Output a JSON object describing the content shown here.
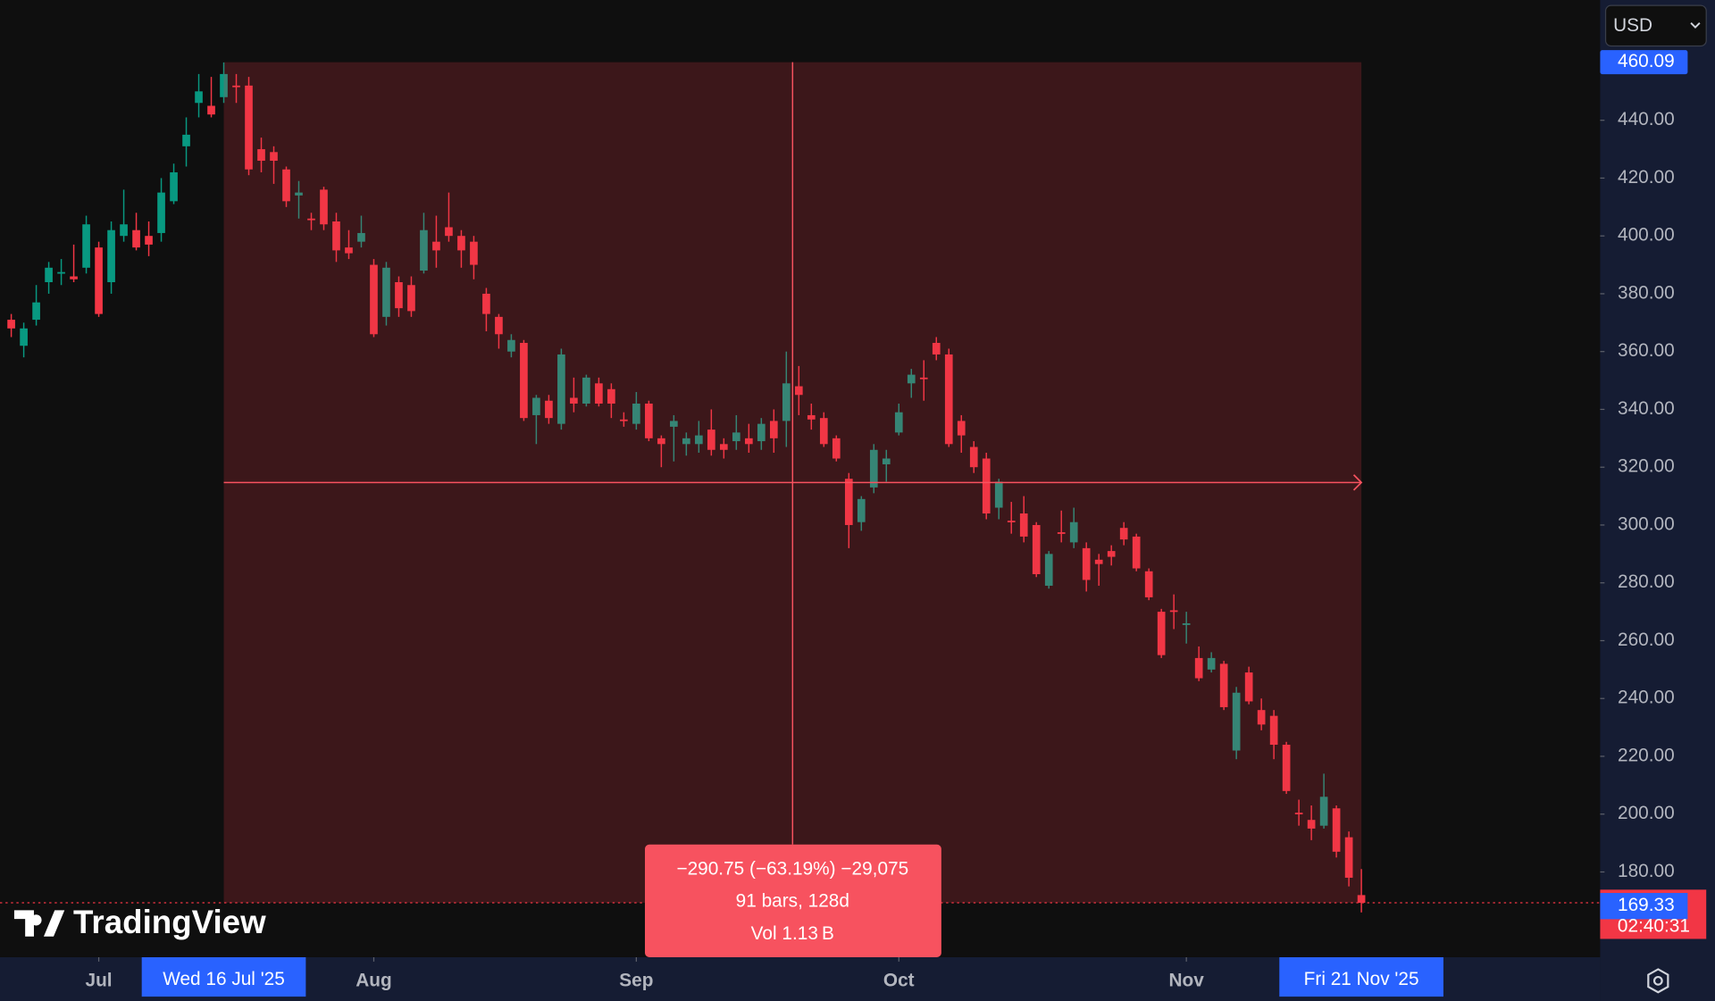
{
  "chart_data": {
    "type": "candlestick",
    "up_color": "#089981",
    "down_color": "#f23645",
    "xlim": [
      -0.9,
      127.1
    ],
    "ylim": [
      150.5,
      481.6
    ],
    "xticks": [
      {
        "value": 7,
        "label": "Jul"
      },
      {
        "value": 29,
        "label": "Aug"
      },
      {
        "value": 50,
        "label": "Sep"
      },
      {
        "value": 71,
        "label": "Oct"
      },
      {
        "value": 94,
        "label": "Nov"
      }
    ],
    "yticks": [
      {
        "value": 180,
        "label": "180.00"
      },
      {
        "value": 200,
        "label": "200.00"
      },
      {
        "value": 220,
        "label": "220.00"
      },
      {
        "value": 240,
        "label": "240.00"
      },
      {
        "value": 260,
        "label": "260.00"
      },
      {
        "value": 280,
        "label": "280.00"
      },
      {
        "value": 300,
        "label": "300.00"
      },
      {
        "value": 320,
        "label": "320.00"
      },
      {
        "value": 340,
        "label": "340.00"
      },
      {
        "value": 360,
        "label": "360.00"
      },
      {
        "value": 380,
        "label": "380.00"
      },
      {
        "value": 400,
        "label": "400.00"
      },
      {
        "value": 420,
        "label": "420.00"
      },
      {
        "value": 440,
        "label": "440.00"
      }
    ],
    "open": [
      371,
      362,
      371,
      384,
      387,
      386,
      389,
      396,
      384,
      400,
      402,
      400,
      401,
      412,
      431,
      446,
      445,
      448,
      452,
      452,
      430,
      429,
      423,
      414,
      406,
      416,
      405,
      396,
      398,
      390,
      372,
      384,
      383,
      388,
      398,
      403,
      400,
      398,
      380,
      372,
      360,
      363,
      338,
      343,
      335,
      344,
      342,
      349,
      347,
      336.5,
      335,
      342,
      330,
      334,
      328,
      328,
      333,
      328,
      329,
      330,
      329,
      336,
      336,
      348,
      338,
      337,
      330,
      316,
      301,
      313,
      321,
      332,
      349,
      351,
      363,
      359,
      336,
      327,
      323,
      306,
      301.5,
      304,
      300,
      279,
      297.5,
      294,
      292,
      288,
      291,
      299,
      296,
      284,
      270,
      270.5,
      265.5,
      254,
      250,
      252,
      222,
      249,
      236,
      234,
      224,
      200.5,
      198,
      196,
      202,
      192,
      172
    ],
    "high": [
      373,
      370,
      383,
      391,
      392,
      397,
      407,
      398,
      405,
      416,
      408,
      405,
      420,
      425,
      441,
      456,
      455,
      460,
      456,
      455,
      434,
      431,
      424,
      419,
      408,
      417,
      408,
      402,
      407,
      392,
      391,
      386,
      386,
      408,
      407,
      415,
      402,
      400,
      382,
      373,
      366,
      364,
      345,
      345,
      361,
      351,
      352,
      351,
      349,
      339,
      346,
      343,
      331,
      338,
      332,
      336,
      340,
      330,
      338,
      335,
      337,
      340,
      360,
      355,
      342,
      339,
      331,
      318,
      310,
      328,
      326,
      342,
      354,
      357,
      365,
      361,
      338,
      329,
      325,
      316,
      308,
      310,
      301,
      291,
      305,
      306,
      294,
      290,
      293,
      301,
      297,
      285,
      271,
      276,
      270,
      258,
      256,
      253,
      244,
      251,
      240,
      236,
      225,
      205,
      203,
      214,
      203,
      194,
      181
    ],
    "low": [
      365,
      358,
      369,
      380,
      383,
      384,
      387,
      372,
      380,
      398,
      395,
      393,
      398,
      411,
      424,
      441,
      441,
      446,
      446,
      421,
      422,
      418,
      410,
      406,
      402,
      402,
      391,
      392,
      396,
      365,
      369,
      372,
      372,
      387,
      389,
      398,
      389,
      385,
      367,
      361,
      358,
      336,
      328,
      335,
      333,
      339,
      341,
      341,
      337,
      334,
      333,
      329,
      320,
      322,
      324,
      325,
      324,
      323,
      326,
      325,
      326,
      325,
      327,
      338,
      333,
      327,
      322,
      292,
      298,
      311,
      315,
      331,
      344,
      343,
      357,
      327,
      325,
      318,
      302,
      302,
      297,
      294,
      282,
      278,
      294,
      292,
      277,
      279,
      286,
      293,
      284,
      274,
      254,
      264,
      259,
      246,
      249,
      236,
      219,
      238,
      229,
      219,
      207,
      196,
      191,
      195,
      185,
      175,
      166
    ],
    "close": [
      368,
      368,
      377,
      389,
      387.5,
      385,
      404,
      373,
      402,
      404,
      396,
      397,
      415,
      422,
      435,
      450,
      442,
      456,
      451.5,
      423,
      426,
      426,
      412,
      415,
      405.5,
      404,
      395,
      394,
      401,
      366,
      389,
      375,
      374,
      402,
      395,
      400,
      395,
      390,
      373,
      366,
      364,
      337,
      344,
      337,
      359,
      342,
      351,
      342,
      342,
      336,
      342,
      330,
      328,
      336,
      330,
      331,
      326,
      326,
      332,
      328,
      335,
      330,
      349,
      345,
      336.5,
      328,
      323,
      300,
      309,
      326,
      323,
      339,
      352,
      350.5,
      359,
      328,
      331,
      320,
      304,
      315,
      301,
      296,
      283,
      290,
      297,
      301,
      281,
      286.5,
      289,
      295,
      285,
      275,
      255,
      270,
      266,
      247,
      254,
      237,
      242,
      239,
      231,
      224,
      208,
      200,
      195,
      206,
      187,
      178,
      169.33
    ],
    "range": {
      "start": 17,
      "end": 108,
      "start_label": "Wed 16 Jul '25",
      "end_label": "Fri 21 Nov '25",
      "top": {
        "value": 460.09,
        "label": "460.09"
      },
      "bottom": 169.33,
      "change": "−290.75 (−63.19%) −29,075",
      "bars": "91 bars, 128d",
      "volume": "Vol 1.13 B"
    },
    "last_price": {
      "value": 169.33,
      "label": "169.33"
    },
    "countdown": "02:40:31",
    "currency": "USD",
    "brand": "TradingView"
  }
}
